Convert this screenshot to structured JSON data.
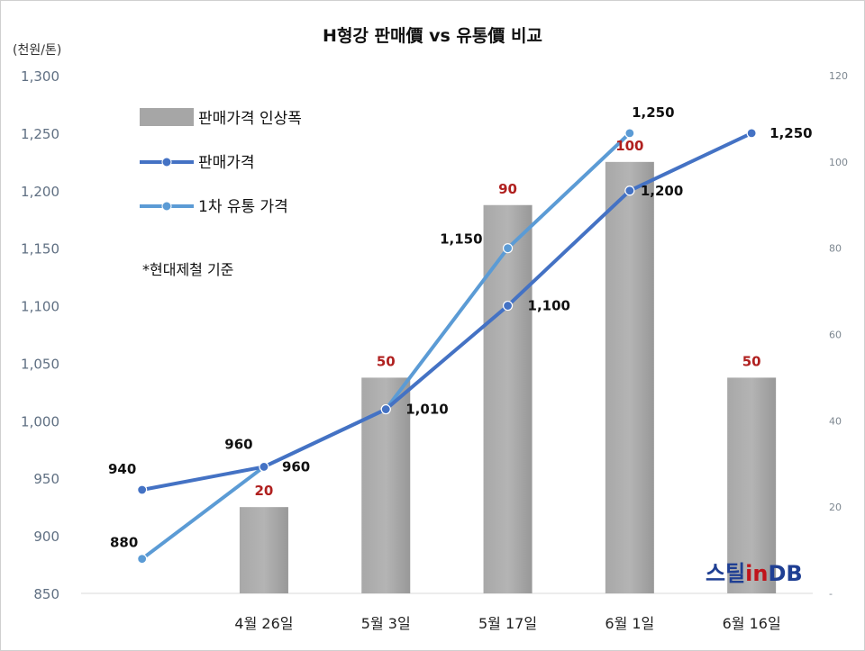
{
  "chart_data": {
    "type": "bar",
    "title": "H형강 판매價 vs 유통價 비교",
    "ylabel_left": "(천원/톤)",
    "categories": [
      "",
      "4월 26일",
      "5월 3일",
      "5월 17일",
      "6월 1일",
      "6월 16일"
    ],
    "left_axis": {
      "ylim": [
        850,
        1300
      ],
      "ticks": [
        "850",
        "900",
        "950",
        "1,000",
        "1,050",
        "1,100",
        "1,150",
        "1,200",
        "1,250",
        "1,300"
      ]
    },
    "right_axis": {
      "ylim": [
        0,
        120
      ],
      "ticks": [
        "-",
        "20",
        "40",
        "60",
        "80",
        "100",
        "120"
      ]
    },
    "series": [
      {
        "name": "판매가격 인상폭",
        "type": "bar",
        "axis": "right",
        "values": [
          null,
          20,
          50,
          90,
          100,
          50
        ],
        "labels": [
          "",
          "20",
          "50",
          "90",
          "100",
          "50"
        ],
        "color": "#a6a6a6"
      },
      {
        "name": "판매가격",
        "type": "line",
        "axis": "left",
        "values": [
          940,
          960,
          1010,
          1100,
          1200,
          1250
        ],
        "labels": [
          "940",
          "960",
          "1,010",
          "1,100",
          "1,200",
          "1,250"
        ],
        "color": "#4472c4"
      },
      {
        "name": "1차 유통 가격",
        "type": "line",
        "axis": "left",
        "values": [
          880,
          960,
          1010,
          1150,
          1250,
          null
        ],
        "labels": [
          "880",
          "960",
          "",
          "1,150",
          "1,250",
          ""
        ],
        "color": "#5b9bd5"
      }
    ],
    "note": "*현대제철 기준",
    "legend_position": "top-left",
    "grid": false
  },
  "watermark": {
    "part1": "스틸",
    "part2": "in",
    "part3": "DB"
  }
}
